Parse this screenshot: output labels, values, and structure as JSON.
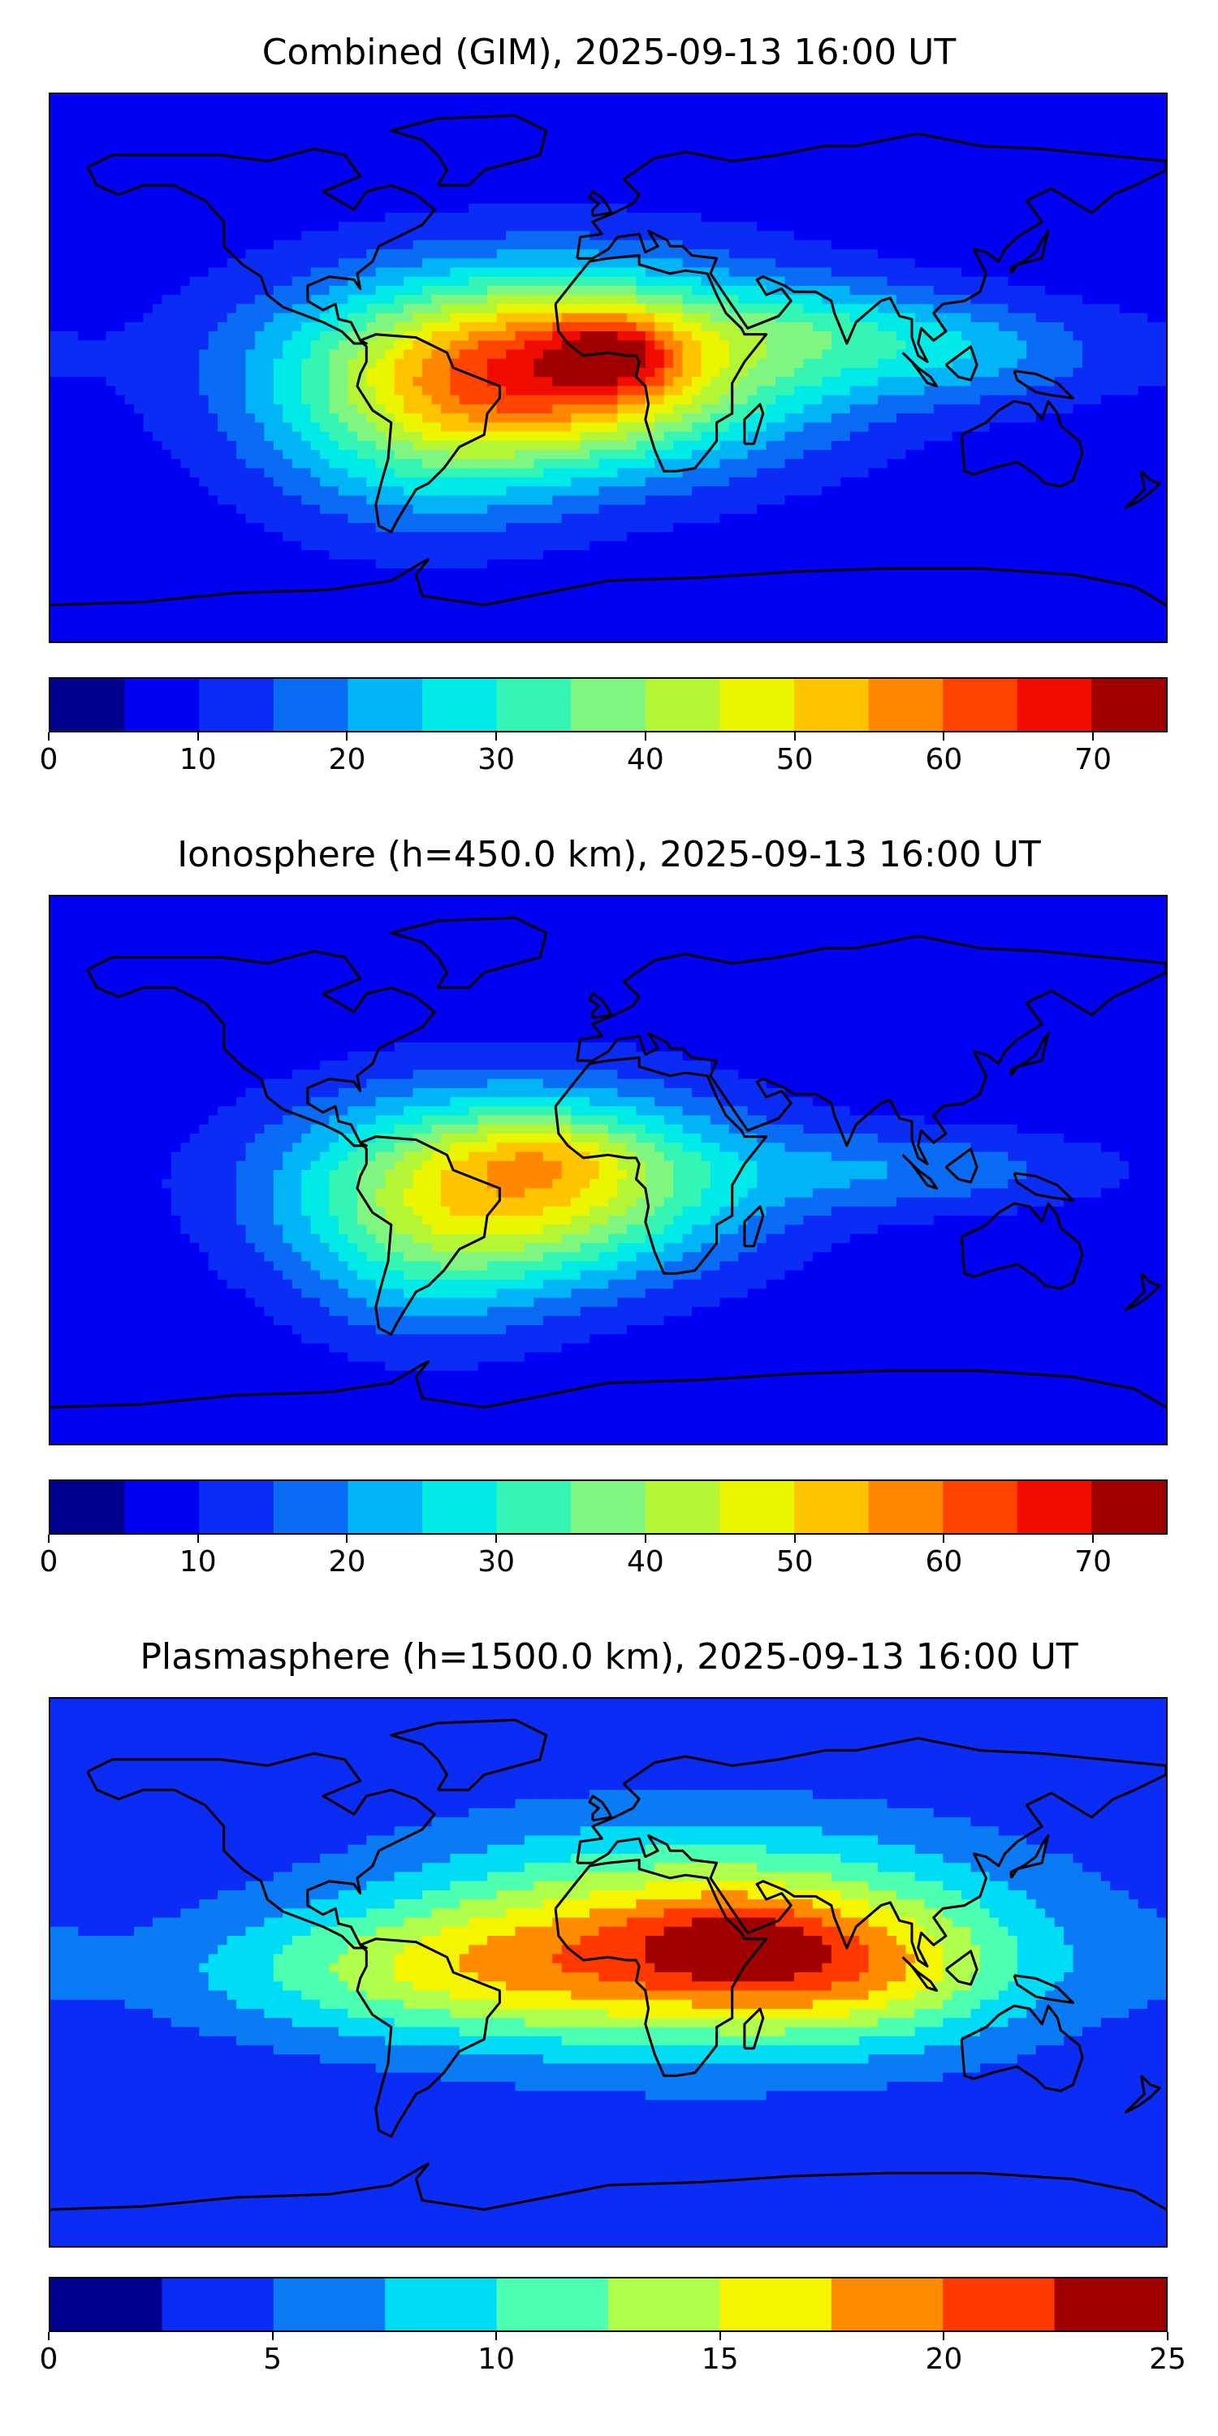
{
  "colors": {
    "coast": "#000000",
    "levels": [
      "#00008f",
      "#0000f5",
      "#0a2cf5",
      "#0a6cf5",
      "#00b4f5",
      "#00ebe8",
      "#35f5b4",
      "#80f580",
      "#b4f535",
      "#ebf500",
      "#ffc400",
      "#ff8800",
      "#ff4400",
      "#f00c00",
      "#a00000"
    ],
    "plasma_levels": [
      "#00008f",
      "#0a2cf5",
      "#0a7af5",
      "#00dcf5",
      "#4dffb0",
      "#b0ff4d",
      "#f5f500",
      "#ff8c00",
      "#ff3800",
      "#a00000"
    ]
  },
  "chart_data": [
    {
      "type": "heatmap",
      "title": "Combined (GIM), 2025-09-13 16:00 UT",
      "colorbar": {
        "min": 0,
        "max": 75,
        "step": 5,
        "ticks": [
          "0",
          "10",
          "20",
          "30",
          "40",
          "50",
          "60",
          "70"
        ],
        "tick_values": [
          0,
          10,
          20,
          30,
          40,
          50,
          60,
          70
        ]
      },
      "lon_range": [
        -180,
        180
      ],
      "lat_range": [
        -90,
        90
      ],
      "background": 7,
      "blobs": [
        {
          "lon": -20,
          "lat": 0,
          "amp": 58,
          "slon": 55,
          "slat": 22
        },
        {
          "lon": 2,
          "lat": 5,
          "amp": 18,
          "slon": 14,
          "slat": 9
        },
        {
          "lon": 110,
          "lat": 5,
          "amp": 14,
          "slon": 40,
          "slat": 12
        },
        {
          "lon": -60,
          "lat": -30,
          "amp": 12,
          "slon": 35,
          "slat": 20
        },
        {
          "lon": 70,
          "lat": 15,
          "amp": 8,
          "slon": 30,
          "slat": 10
        }
      ]
    },
    {
      "type": "heatmap",
      "title": "Ionosphere  (h=450.0 km), 2025-09-13 16:00 UT",
      "colorbar": {
        "min": 0,
        "max": 75,
        "step": 5,
        "ticks": [
          "0",
          "10",
          "20",
          "30",
          "40",
          "50",
          "60",
          "70"
        ],
        "tick_values": [
          0,
          10,
          20,
          30,
          40,
          50,
          60,
          70
        ]
      },
      "lon_range": [
        -180,
        180
      ],
      "lat_range": [
        -90,
        90
      ],
      "background": 6,
      "blobs": [
        {
          "lon": -30,
          "lat": -5,
          "amp": 45,
          "slon": 50,
          "slat": 22
        },
        {
          "lon": -20,
          "lat": 5,
          "amp": 8,
          "slon": 20,
          "slat": 8
        },
        {
          "lon": 100,
          "lat": 0,
          "amp": 12,
          "slon": 45,
          "slat": 10
        },
        {
          "lon": -60,
          "lat": -35,
          "amp": 10,
          "slon": 30,
          "slat": 20
        }
      ]
    },
    {
      "type": "heatmap",
      "title": "Plasmasphere (h=1500.0 km), 2025-09-13 16:00 UT",
      "colorbar": {
        "min": 0,
        "max": 25,
        "step": 2.5,
        "ticks": [
          "0",
          "5",
          "10",
          "15",
          "20",
          "25"
        ],
        "tick_values": [
          0,
          5,
          10,
          15,
          20,
          25
        ]
      },
      "lon_range": [
        -180,
        180
      ],
      "lat_range": [
        -90,
        90
      ],
      "background": 3,
      "blobs": [
        {
          "lon": 30,
          "lat": 10,
          "amp": 15,
          "slon": 70,
          "slat": 25
        },
        {
          "lon": 40,
          "lat": 10,
          "amp": 4,
          "slon": 20,
          "slat": 10
        },
        {
          "lon": 80,
          "lat": 0,
          "amp": 6,
          "slon": 35,
          "slat": 15
        },
        {
          "lon": -60,
          "lat": 0,
          "amp": 7,
          "slon": 60,
          "slat": 15
        }
      ]
    }
  ]
}
